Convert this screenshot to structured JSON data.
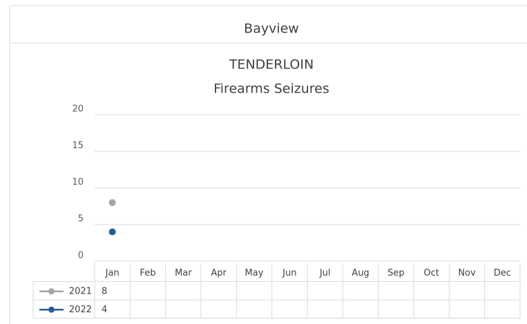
{
  "header": {
    "title": "Bayview"
  },
  "chart_data": {
    "type": "line",
    "title": "TENDERLOIN",
    "subtitle": "Firearms Seizures",
    "categories": [
      "Jan",
      "Feb",
      "Mar",
      "Apr",
      "May",
      "Jun",
      "Jul",
      "Aug",
      "Sep",
      "Oct",
      "Nov",
      "Dec"
    ],
    "series": [
      {
        "name": "2021",
        "color": "#a5a5a5",
        "values": [
          8,
          null,
          null,
          null,
          null,
          null,
          null,
          null,
          null,
          null,
          null,
          null
        ]
      },
      {
        "name": "2022",
        "color": "#255e91",
        "values": [
          4,
          null,
          null,
          null,
          null,
          null,
          null,
          null,
          null,
          null,
          null,
          null
        ]
      }
    ],
    "ylim": [
      0,
      20
    ],
    "yticks": [
      0,
      5,
      10,
      15,
      20
    ],
    "grid": true,
    "data_table": true
  }
}
